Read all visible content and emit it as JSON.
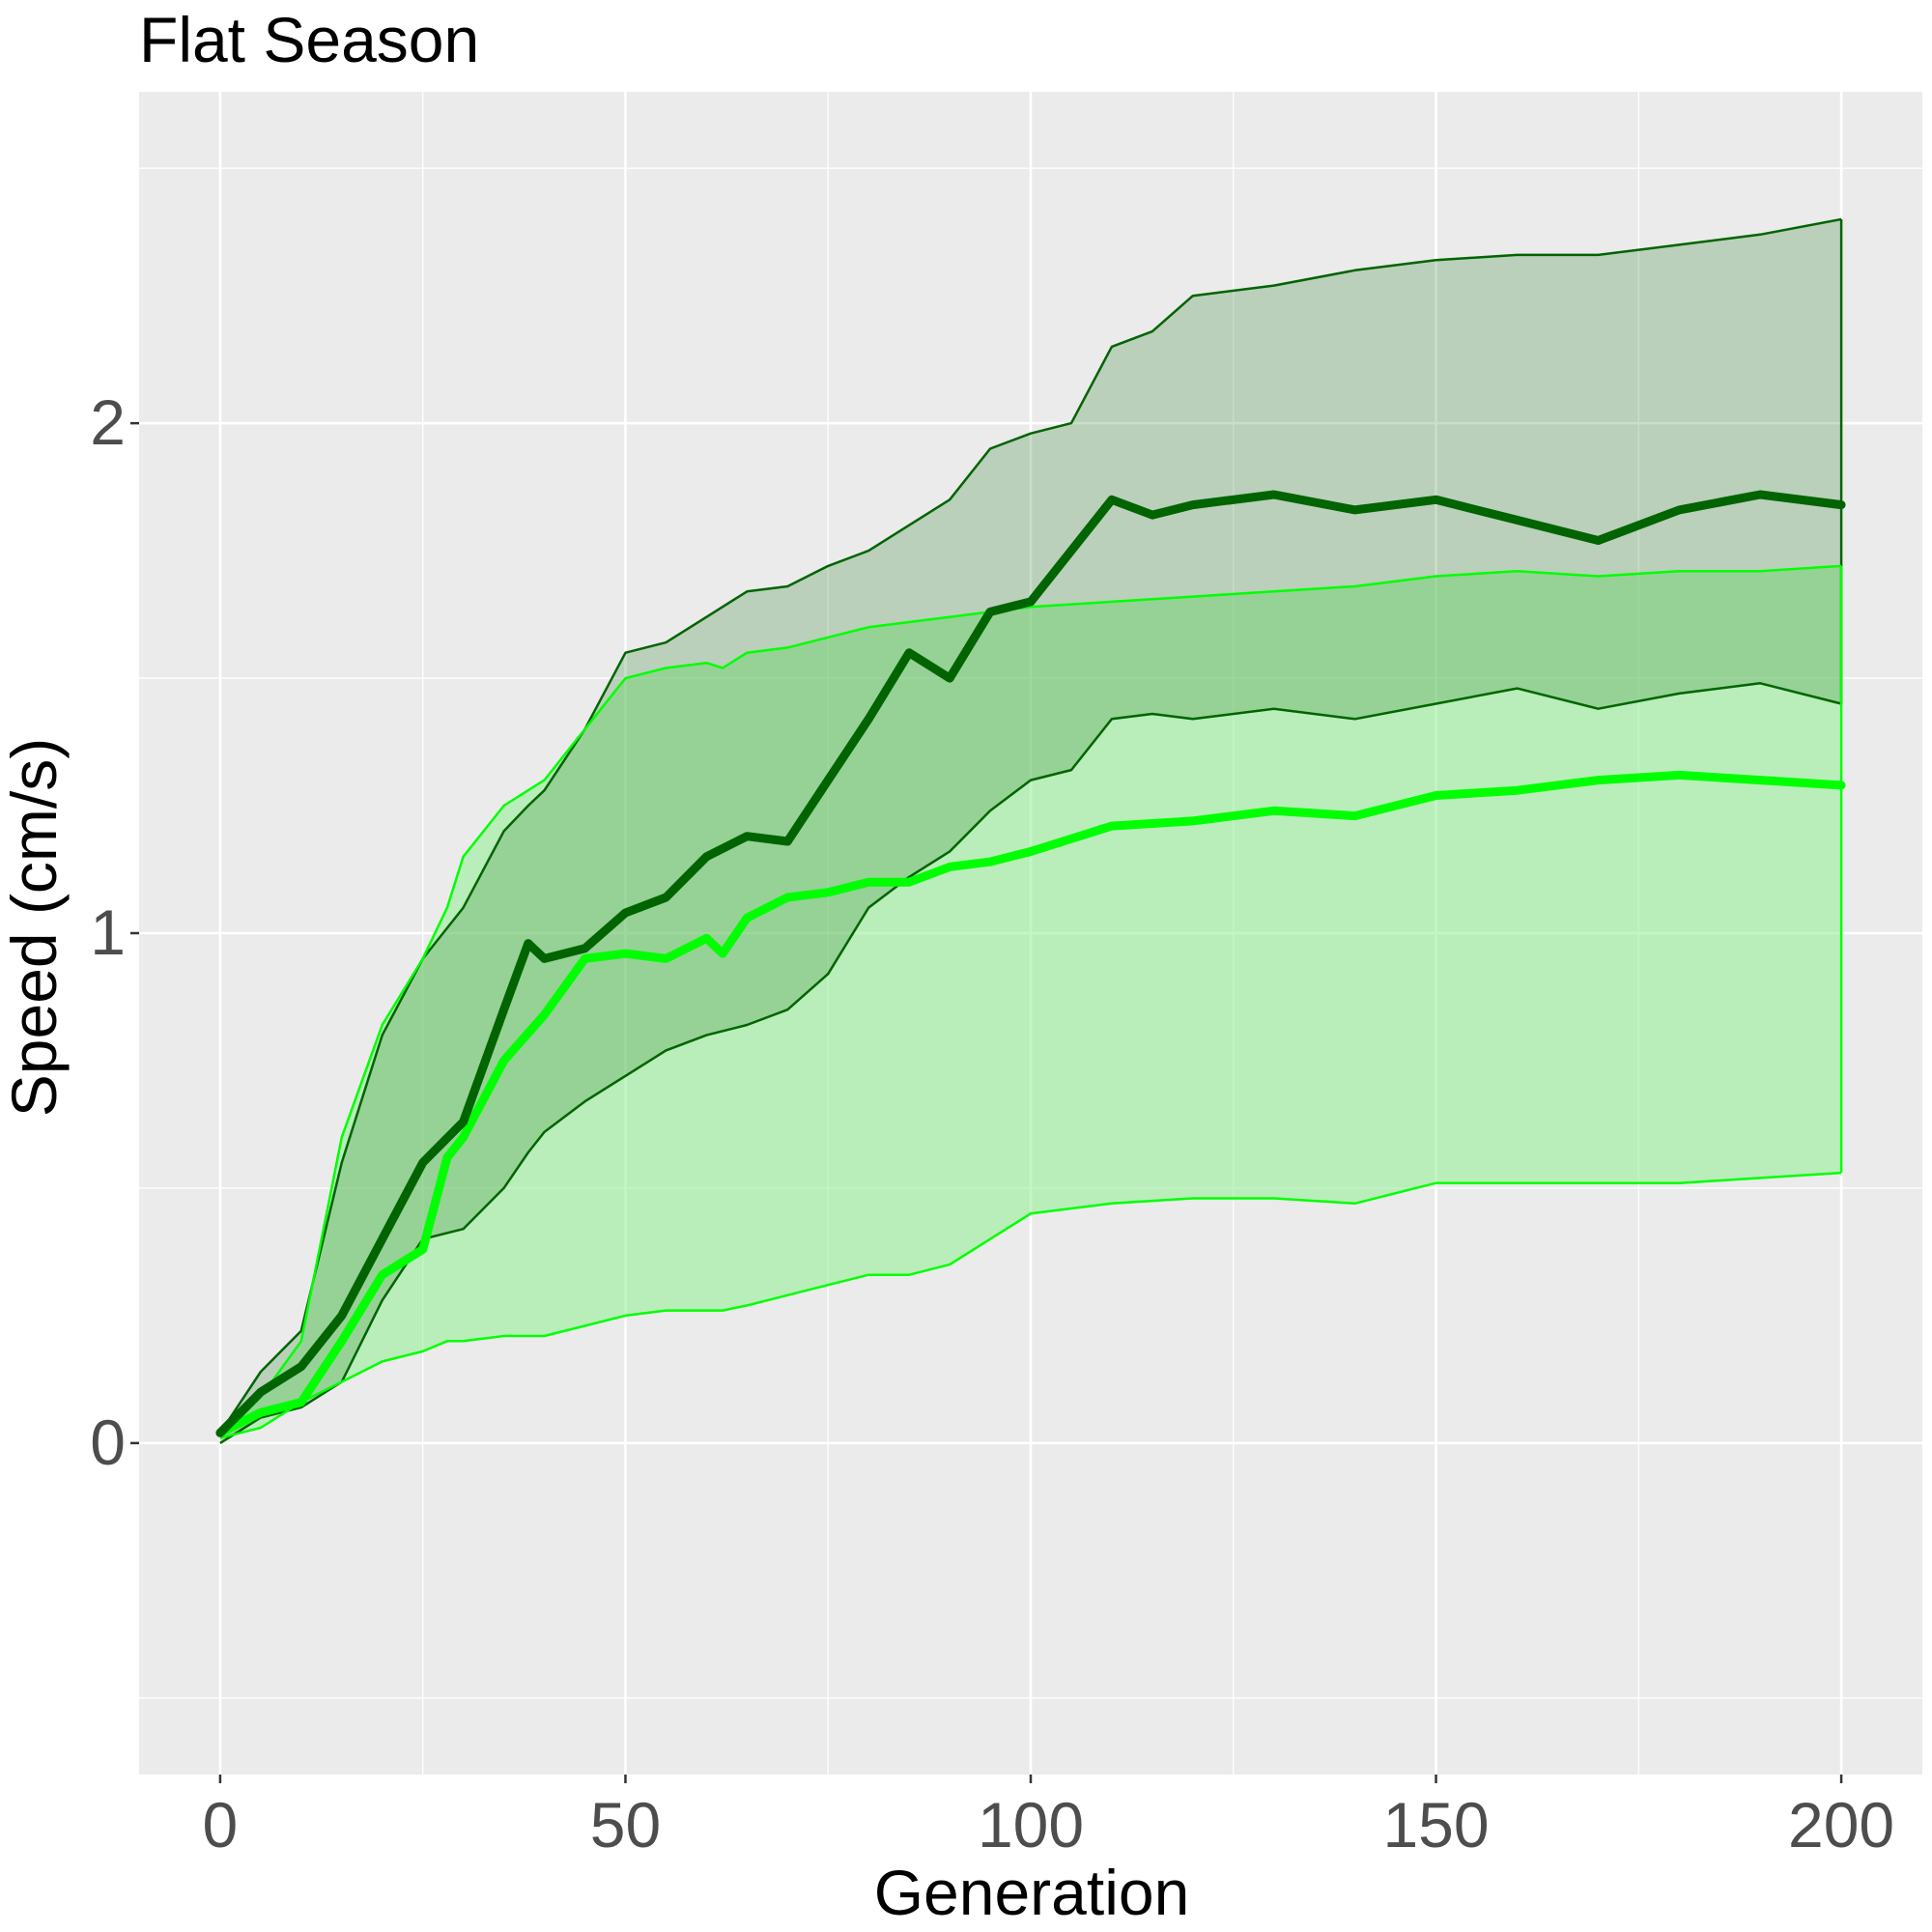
{
  "chart_data": {
    "type": "line",
    "title": "Flat Season",
    "xlabel": "Generation",
    "ylabel": "Speed (cm/s)",
    "xlim": [
      -10,
      210
    ],
    "ylim": [
      -0.65,
      2.65
    ],
    "x_ticks": [
      0,
      50,
      100,
      150,
      200
    ],
    "y_ticks": [
      0,
      1,
      2
    ],
    "x_tick_labels": [
      "0",
      "50",
      "100",
      "150",
      "200"
    ],
    "y_tick_labels": [
      "0",
      "1",
      "2"
    ],
    "grid": true,
    "legend": "none",
    "colors": {
      "panel": "#ebebeb",
      "grid": "#ffffff",
      "dark_line": "#006400",
      "dark_ribbon": "#3c8c3c",
      "light_line": "#00ff00",
      "light_ribbon": "#90ee90"
    },
    "series": [
      {
        "color": "dark",
        "x": [
          0,
          5,
          10,
          15,
          20,
          25,
          30,
          35,
          38,
          40,
          45,
          50,
          55,
          60,
          65,
          70,
          75,
          80,
          85,
          90,
          95,
          100,
          105,
          110,
          115,
          120,
          130,
          140,
          150,
          160,
          170,
          180,
          190,
          200
        ],
        "mean": [
          0.02,
          0.1,
          0.15,
          0.25,
          0.4,
          0.55,
          0.63,
          0.85,
          0.98,
          0.95,
          0.97,
          1.04,
          1.07,
          1.15,
          1.19,
          1.18,
          1.3,
          1.42,
          1.55,
          1.5,
          1.63,
          1.65,
          1.75,
          1.85,
          1.82,
          1.84,
          1.86,
          1.83,
          1.85,
          1.81,
          1.77,
          1.83,
          1.86,
          1.84
        ],
        "upper": [
          0.02,
          0.14,
          0.22,
          0.55,
          0.8,
          0.95,
          1.05,
          1.2,
          1.25,
          1.28,
          1.4,
          1.55,
          1.57,
          1.62,
          1.67,
          1.68,
          1.72,
          1.75,
          1.8,
          1.85,
          1.95,
          1.98,
          2.0,
          2.15,
          2.18,
          2.25,
          2.27,
          2.3,
          2.32,
          2.33,
          2.33,
          2.35,
          2.37,
          2.4
        ],
        "lower": [
          0.0,
          0.05,
          0.07,
          0.12,
          0.28,
          0.4,
          0.42,
          0.5,
          0.57,
          0.61,
          0.67,
          0.72,
          0.77,
          0.8,
          0.82,
          0.85,
          0.92,
          1.05,
          1.11,
          1.16,
          1.24,
          1.3,
          1.32,
          1.42,
          1.43,
          1.42,
          1.44,
          1.42,
          1.45,
          1.48,
          1.44,
          1.47,
          1.49,
          1.45
        ]
      },
      {
        "color": "light",
        "x": [
          0,
          5,
          10,
          15,
          20,
          25,
          28,
          30,
          35,
          40,
          45,
          50,
          55,
          60,
          62,
          65,
          70,
          75,
          80,
          85,
          90,
          95,
          100,
          110,
          120,
          130,
          140,
          150,
          160,
          170,
          180,
          190,
          200
        ],
        "mean": [
          0.02,
          0.06,
          0.08,
          0.2,
          0.33,
          0.38,
          0.56,
          0.6,
          0.75,
          0.84,
          0.95,
          0.96,
          0.95,
          0.99,
          0.96,
          1.03,
          1.07,
          1.08,
          1.1,
          1.1,
          1.13,
          1.14,
          1.16,
          1.21,
          1.22,
          1.24,
          1.23,
          1.27,
          1.28,
          1.3,
          1.31,
          1.3,
          1.29
        ],
        "upper": [
          0.01,
          0.09,
          0.2,
          0.6,
          0.82,
          0.95,
          1.05,
          1.15,
          1.25,
          1.3,
          1.4,
          1.5,
          1.52,
          1.53,
          1.52,
          1.55,
          1.56,
          1.58,
          1.6,
          1.61,
          1.62,
          1.63,
          1.64,
          1.65,
          1.66,
          1.67,
          1.68,
          1.7,
          1.71,
          1.7,
          1.71,
          1.71,
          1.72
        ],
        "lower": [
          0.01,
          0.03,
          0.08,
          0.12,
          0.16,
          0.18,
          0.2,
          0.2,
          0.21,
          0.21,
          0.23,
          0.25,
          0.26,
          0.26,
          0.26,
          0.27,
          0.29,
          0.31,
          0.33,
          0.33,
          0.35,
          0.4,
          0.45,
          0.47,
          0.48,
          0.48,
          0.47,
          0.51,
          0.51,
          0.51,
          0.51,
          0.52,
          0.53
        ]
      }
    ]
  }
}
